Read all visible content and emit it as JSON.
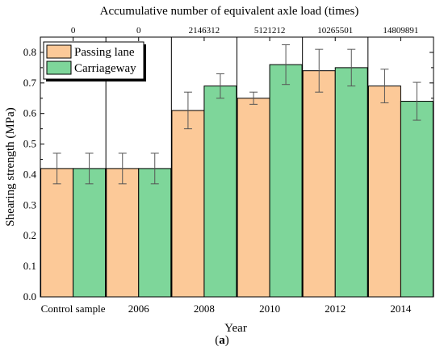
{
  "chart_data": {
    "type": "bar",
    "title": "",
    "top_axis_title": "Accumulative number of equivalent axle load (times)",
    "top_axis_labels": [
      "0",
      "0",
      "2146312",
      "5121212",
      "10265501",
      "14809891"
    ],
    "categories": [
      "Control sample",
      "2006",
      "2008",
      "2010",
      "2012",
      "2014"
    ],
    "xlabel": "Year",
    "ylabel": "Shearing strength (MPa)",
    "ylim": [
      0.0,
      0.85
    ],
    "yticks": [
      "0.0",
      "0.1",
      "0.2",
      "0.3",
      "0.4",
      "0.5",
      "0.6",
      "0.7",
      "0.8"
    ],
    "legend_position": "top-left",
    "series": [
      {
        "name": "Passing lane",
        "color": "#fcc998",
        "values": [
          0.42,
          0.42,
          0.61,
          0.65,
          0.74,
          0.69
        ],
        "error": [
          0.05,
          0.05,
          0.06,
          0.02,
          0.07,
          0.055
        ]
      },
      {
        "name": "Carriageway",
        "color": "#7ed69a",
        "values": [
          0.42,
          0.42,
          0.69,
          0.76,
          0.75,
          0.64
        ],
        "error": [
          0.05,
          0.05,
          0.04,
          0.065,
          0.06,
          0.062
        ]
      }
    ]
  },
  "caption": {
    "open": "(",
    "label": "a",
    "close": ")"
  }
}
